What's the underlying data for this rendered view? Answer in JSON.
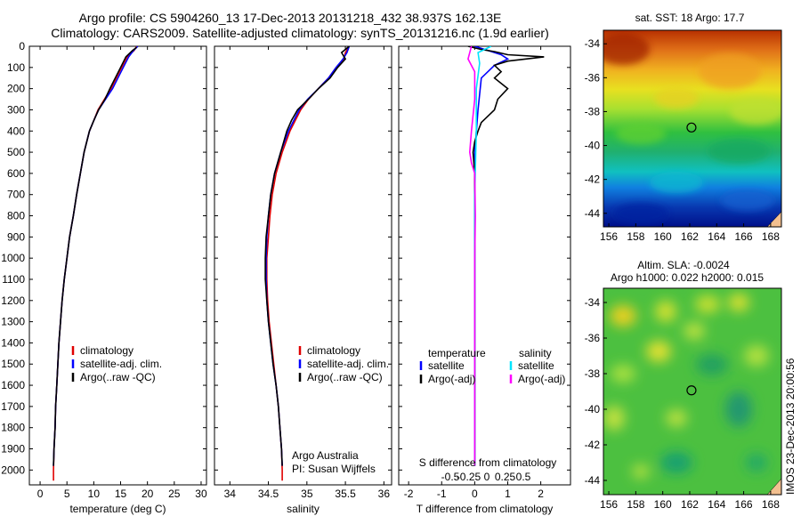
{
  "header": {
    "line1": "Argo profile: CS 5904260_13 17-Dec-2013 20131218_432 38.937S 162.13E",
    "line2": "Climatology: CARS2009. Satellite-adjusted climatology: synTS_20131216.nc (1.9d earlier)"
  },
  "stamp": "IMOS 23-Dec-2013 20:00:56",
  "colors": {
    "clim": "#e00000",
    "sat": "#0000ff",
    "argo": "#000000",
    "sal_sat": "#00e5ff",
    "sal_argo": "#ff00ff"
  },
  "chart_data": [
    {
      "type": "line",
      "id": "temperature",
      "xlabel": "temperature (deg C)",
      "xlim": [
        -2,
        31
      ],
      "ylim": [
        2070,
        0
      ],
      "xticks": [
        0,
        5,
        10,
        15,
        20,
        25,
        30
      ],
      "yticks": [
        0,
        100,
        200,
        300,
        400,
        500,
        600,
        700,
        800,
        900,
        1000,
        1100,
        1200,
        1300,
        1400,
        1500,
        1600,
        1700,
        1800,
        1900,
        2000
      ],
      "legend": [
        "climatology",
        "satellite-adj. clim.",
        "Argo(..raw -QC)"
      ],
      "series": [
        {
          "name": "climatology",
          "color": "#e00000",
          "x": [
            18.0,
            17.5,
            16.2,
            15.2,
            14.2,
            13.2,
            12.0,
            10.8,
            10.0,
            9.2,
            8.2,
            7.5,
            6.8,
            6.2,
            5.5,
            5.0,
            4.5,
            4.1,
            3.8,
            3.5,
            3.3,
            3.1,
            2.9,
            2.8,
            2.6,
            2.5,
            2.5
          ],
          "y": [
            0,
            20,
            50,
            100,
            150,
            200,
            250,
            300,
            350,
            400,
            500,
            600,
            700,
            800,
            900,
            1000,
            1100,
            1200,
            1300,
            1400,
            1500,
            1600,
            1700,
            1800,
            1900,
            2000,
            2050
          ]
        },
        {
          "name": "satellite-adj. clim.",
          "color": "#0000ff",
          "x": [
            18.2,
            17.4,
            16.5,
            15.5,
            14.5,
            13.5,
            12.2,
            10.9,
            10.0,
            9.2,
            8.2,
            7.5,
            6.8,
            6.2,
            5.5,
            5.0,
            4.5,
            4.1,
            3.8,
            3.5,
            3.3,
            3.1,
            2.9,
            2.8,
            2.6,
            2.5
          ],
          "y": [
            0,
            20,
            50,
            100,
            150,
            200,
            250,
            300,
            350,
            400,
            500,
            600,
            700,
            800,
            900,
            1000,
            1100,
            1200,
            1300,
            1400,
            1500,
            1600,
            1700,
            1800,
            1900,
            1980
          ]
        },
        {
          "name": "Argo(..raw -QC)",
          "color": "#000000",
          "x": [
            18.0,
            17.2,
            16.0,
            15.0,
            14.0,
            13.0,
            12.1,
            10.9,
            10.0,
            9.2,
            8.2,
            7.5,
            6.8,
            6.2,
            5.5,
            5.0,
            4.5,
            4.1,
            3.8,
            3.5,
            3.3,
            3.1,
            2.9,
            2.8,
            2.6,
            2.5
          ],
          "y": [
            5,
            20,
            50,
            100,
            150,
            200,
            250,
            300,
            350,
            400,
            500,
            600,
            700,
            800,
            900,
            1000,
            1100,
            1200,
            1300,
            1400,
            1500,
            1600,
            1700,
            1800,
            1900,
            1980
          ]
        }
      ]
    },
    {
      "type": "line",
      "id": "salinity",
      "xlabel": "salinity",
      "xlim": [
        33.8,
        36.1
      ],
      "ylim": [
        2070,
        0
      ],
      "xticks": [
        34,
        34.5,
        35,
        35.5,
        36
      ],
      "legend": [
        "climatology",
        "satellite-adj. clim.",
        "Argo(..raw -QC)"
      ],
      "annotation": [
        "Argo Australia",
        "PI: Susan Wijffels"
      ],
      "series": [
        {
          "name": "climatology",
          "color": "#e00000",
          "x": [
            35.55,
            35.5,
            35.48,
            35.38,
            35.28,
            35.15,
            35.02,
            34.92,
            34.85,
            34.78,
            34.68,
            34.6,
            34.55,
            34.52,
            34.5,
            34.48,
            34.48,
            34.49,
            34.51,
            34.54,
            34.57,
            34.6,
            34.63,
            34.65,
            34.67,
            34.68,
            34.68
          ],
          "y": [
            0,
            30,
            60,
            100,
            150,
            200,
            250,
            300,
            350,
            400,
            500,
            600,
            700,
            800,
            900,
            1000,
            1100,
            1200,
            1300,
            1400,
            1500,
            1600,
            1700,
            1800,
            1900,
            2000,
            2050
          ]
        },
        {
          "name": "satellite-adj. clim.",
          "color": "#0000ff",
          "x": [
            35.55,
            35.52,
            35.47,
            35.38,
            35.28,
            35.15,
            35.01,
            34.9,
            34.83,
            34.76,
            34.66,
            34.58,
            34.53,
            34.5,
            34.48,
            34.47,
            34.47,
            34.48,
            34.5,
            34.53,
            34.56,
            34.6,
            34.63,
            34.65,
            34.67,
            34.68
          ],
          "y": [
            0,
            30,
            60,
            100,
            150,
            200,
            250,
            300,
            350,
            400,
            500,
            600,
            700,
            800,
            900,
            1000,
            1100,
            1200,
            1300,
            1400,
            1500,
            1600,
            1700,
            1800,
            1900,
            1980
          ]
        },
        {
          "name": "Argo(..raw -QC)",
          "color": "#000000",
          "x": [
            35.55,
            35.45,
            35.5,
            35.4,
            35.3,
            35.15,
            35.02,
            34.88,
            34.8,
            34.74,
            34.66,
            34.58,
            34.53,
            34.5,
            34.47,
            34.46,
            34.46,
            34.48,
            34.5,
            34.53,
            34.56,
            34.6,
            34.63,
            34.65,
            34.67,
            34.68
          ],
          "y": [
            0,
            30,
            60,
            100,
            150,
            200,
            250,
            300,
            350,
            400,
            500,
            600,
            700,
            800,
            900,
            1000,
            1100,
            1200,
            1300,
            1400,
            1500,
            1600,
            1700,
            1800,
            1900,
            1980
          ]
        }
      ]
    },
    {
      "type": "line",
      "id": "differences",
      "xlabel": "T difference from climatology",
      "xlabel_top": "S difference from climatology",
      "xlim": [
        -2.3,
        2.9
      ],
      "ylim": [
        2070,
        0
      ],
      "xticks": [
        -2,
        -1,
        0,
        1,
        2
      ],
      "sticks": [
        -0.5,
        -0.25,
        0,
        0.25,
        0.5
      ],
      "legend_temperature_title": "temperature",
      "legend_salinity_title": "salinity",
      "legend_temperature": [
        "satellite",
        "Argo(-adj)"
      ],
      "legend_salinity": [
        "satellite",
        "Argo(-adj)"
      ],
      "series": [
        {
          "name": "temperature satellite",
          "color": "#0000ff",
          "x": [
            0.0,
            0.8,
            1.0,
            0.6,
            0.2,
            0.1,
            0.0,
            0.0,
            0.0,
            0.0,
            0.0,
            0.0,
            0.0,
            0.0
          ],
          "y": [
            0,
            40,
            60,
            90,
            150,
            300,
            500,
            700,
            900,
            1100,
            1400,
            1600,
            1800,
            1980
          ]
        },
        {
          "name": "temperature Argo(-adj)",
          "color": "#000000",
          "x": [
            -0.2,
            0.2,
            0.6,
            1.0,
            2.1,
            1.0,
            0.6,
            0.8,
            0.6,
            1.0,
            0.7,
            0.6,
            0.4,
            0.2,
            0.1,
            0.0,
            -0.05,
            0.0,
            0.0,
            0.0,
            0.0,
            0.0,
            0.0,
            0.0
          ],
          "y": [
            0,
            15,
            25,
            40,
            50,
            70,
            90,
            120,
            150,
            200,
            250,
            300,
            330,
            360,
            400,
            450,
            500,
            600,
            800,
            1000,
            1200,
            1500,
            1800,
            1980
          ]
        },
        {
          "name": "salinity satellite",
          "color": "#00e5ff",
          "x": [
            0.5,
            0.1,
            0.15,
            0.05,
            0.05,
            0.0,
            0.0,
            0.0,
            0.0,
            0.0
          ],
          "y": [
            0,
            30,
            80,
            200,
            400,
            700,
            1000,
            1400,
            1800,
            1980
          ]
        },
        {
          "name": "salinity Argo(-adj)",
          "color": "#ff00ff",
          "x": [
            -0.1,
            -0.2,
            0.0,
            0.0,
            -0.1,
            -0.15,
            -0.1,
            0.0,
            0.02,
            0.0,
            0.0,
            0.0,
            0.0
          ],
          "y": [
            0,
            60,
            120,
            250,
            400,
            500,
            550,
            600,
            800,
            1000,
            1400,
            1800,
            1980
          ]
        }
      ]
    },
    {
      "type": "heatmap",
      "id": "sst-map",
      "title": "sat. SST: 18 Argo: 17.7",
      "xlim": [
        155.6,
        168.8
      ],
      "ylim": [
        -44.8,
        -33.2
      ],
      "xticks": [
        156,
        158,
        160,
        162,
        164,
        166,
        168
      ],
      "yticks": [
        -34,
        -36,
        -38,
        -40,
        -42,
        -44
      ],
      "marker": {
        "lon": 162.13,
        "lat": -38.937
      }
    },
    {
      "type": "heatmap",
      "id": "sla-map",
      "title": "Altim. SLA: -0.0024",
      "subtitle": "Argo h1000: 0.022 h2000: 0.015",
      "xlim": [
        155.6,
        168.8
      ],
      "ylim": [
        -44.8,
        -33.2
      ],
      "xticks": [
        156,
        158,
        160,
        162,
        164,
        166,
        168
      ],
      "yticks": [
        -34,
        -36,
        -38,
        -40,
        -42,
        -44
      ],
      "marker": {
        "lon": 162.13,
        "lat": -38.937
      }
    }
  ]
}
